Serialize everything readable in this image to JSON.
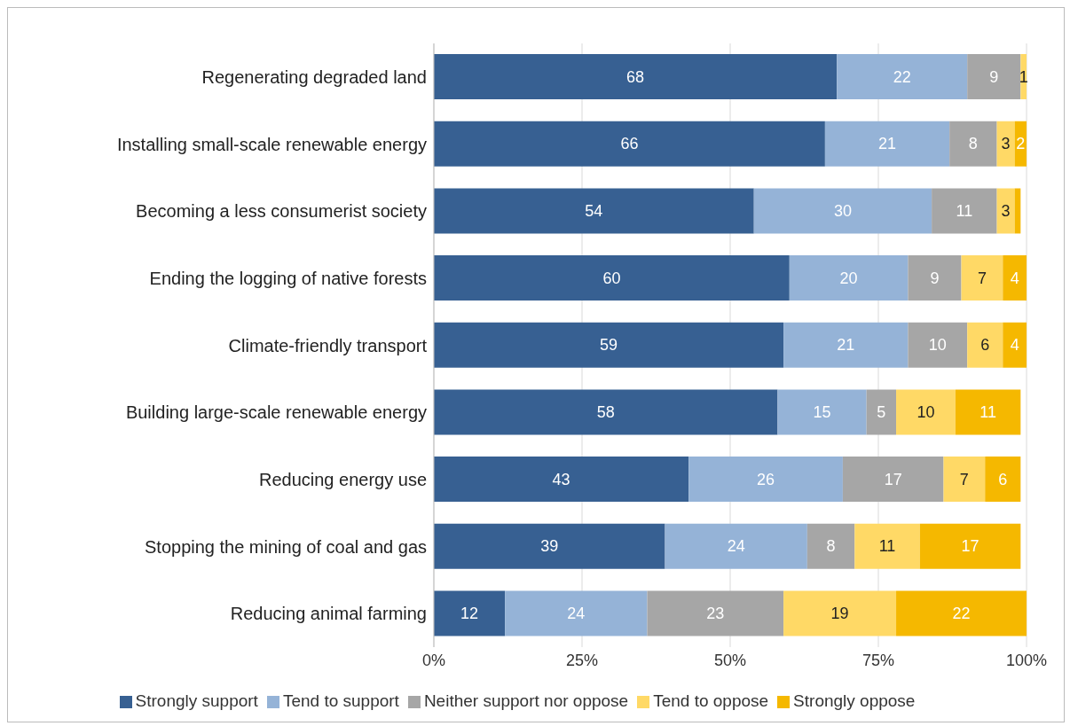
{
  "chart_data": {
    "type": "bar",
    "orientation": "horizontal",
    "stacked": true,
    "categories": [
      "Regenerating degraded land",
      "Installing small-scale renewable energy",
      "Becoming a less consumerist society",
      "Ending the logging of native forests",
      "Climate-friendly transport",
      "Building large-scale renewable energy",
      "Reducing energy use",
      "Stopping the mining of coal and gas",
      "Reducing animal farming"
    ],
    "series": [
      {
        "name": "Strongly support",
        "color": "#376092",
        "values": [
          68,
          66,
          54,
          60,
          59,
          58,
          43,
          39,
          12
        ],
        "value_labels": [
          "68",
          "66",
          "54",
          "60",
          "59",
          "58",
          "43",
          "39",
          "12"
        ]
      },
      {
        "name": "Tend to support",
        "color": "#95b3d7",
        "values": [
          22,
          21,
          30,
          20,
          21,
          15,
          26,
          24,
          24
        ],
        "value_labels": [
          "22",
          "21",
          "30",
          "20",
          "21",
          "15",
          "26",
          "24",
          "24"
        ]
      },
      {
        "name": "Neither support nor oppose",
        "color": "#a6a6a6",
        "values": [
          9,
          8,
          11,
          9,
          10,
          5,
          17,
          8,
          23
        ],
        "value_labels": [
          "9",
          "8",
          "11",
          "9",
          "10",
          "5",
          "17",
          "8",
          "23"
        ]
      },
      {
        "name": "Tend to oppose",
        "color": "#ffd966",
        "values": [
          1,
          3,
          3,
          7,
          6,
          10,
          7,
          11,
          19
        ],
        "value_labels": [
          "1",
          "3",
          "3",
          "7",
          "6",
          "10",
          "7",
          "11",
          "19"
        ]
      },
      {
        "name": "Strongly oppose",
        "color": "#f5b800",
        "values": [
          null,
          2,
          1,
          4,
          4,
          11,
          6,
          17,
          22
        ],
        "value_labels": [
          null,
          "2",
          null,
          "4",
          "4",
          "11",
          "6",
          "17",
          "22"
        ]
      }
    ],
    "xlim": [
      0,
      100
    ],
    "xticks": [
      {
        "value": 0,
        "label": "0%"
      },
      {
        "value": 25,
        "label": "25%"
      },
      {
        "value": 50,
        "label": "50%"
      },
      {
        "value": 75,
        "label": "75%"
      },
      {
        "value": 100,
        "label": "100%"
      }
    ],
    "grid": "x",
    "legend": "bottom"
  }
}
